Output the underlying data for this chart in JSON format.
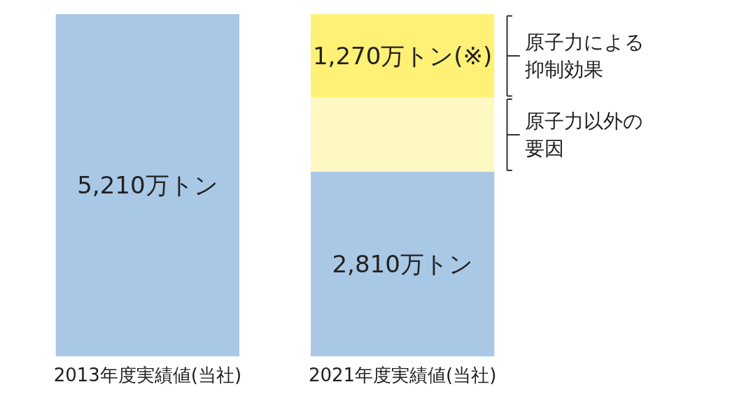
{
  "chart_data": {
    "type": "bar",
    "stacked": true,
    "categories": [
      "2013年度実績値(当社)",
      "2021年度実績値(当社)"
    ],
    "series": [
      {
        "color": "#a9c8e6",
        "values": [
          5210,
          2810
        ],
        "value_labels": [
          "5,210万トン",
          "2,810万トン"
        ]
      },
      {
        "name": "原子力以外の要因",
        "color": "#fff8c2",
        "values": [
          null,
          1130
        ],
        "value_labels": [
          null,
          null
        ]
      },
      {
        "name": "原子力による抑制効果",
        "color": "#fff176",
        "values": [
          null,
          1270
        ],
        "value_labels": [
          null,
          "1,270万トン(※)"
        ]
      }
    ]
  }
}
